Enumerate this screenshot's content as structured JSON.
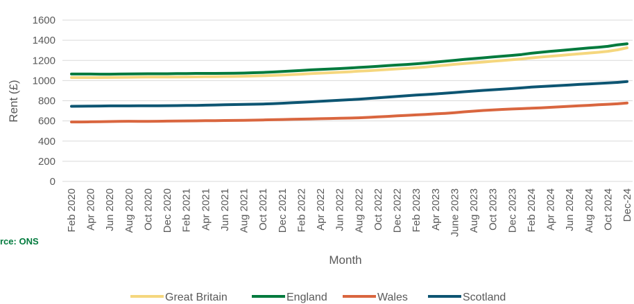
{
  "chart_data": {
    "type": "line",
    "title": "",
    "xlabel": "Month",
    "ylabel": "Rent (£)",
    "ylim": [
      0,
      1600
    ],
    "yticks": [
      0,
      200,
      400,
      600,
      800,
      1000,
      1200,
      1400,
      1600
    ],
    "grid": true,
    "legend_position": "bottom",
    "source": "rce: ONS",
    "x": [
      "Feb 2020",
      "Mar 2020",
      "Apr 2020",
      "May 2020",
      "Jun 2020",
      "Jul 2020",
      "Aug 2020",
      "Sep 2020",
      "Oct 2020",
      "Nov 2020",
      "Dec 2020",
      "Jan 2021",
      "Feb 2021",
      "Mar 2021",
      "Apr 2021",
      "May 2021",
      "Jun 2021",
      "Jul 2021",
      "Aug 2021",
      "Sep 2021",
      "Oct 2021",
      "Nov 2021",
      "Dec 2021",
      "Jan 2022",
      "Feb 2022",
      "Mar 2022",
      "Apr 2022",
      "May 2022",
      "Jun 2022",
      "Jul 2022",
      "Aug 2022",
      "Sep 2022",
      "Oct 2022",
      "Nov 2022",
      "Dec 2022",
      "Jan 2023",
      "Feb 2023",
      "Mar 2023",
      "Apr 2023",
      "May 2023",
      "June 2023",
      "Jul 2023",
      "Aug 2023",
      "Sep 2023",
      "Oct 2023",
      "Nov 2023",
      "Dec 2023",
      "Jan 2024",
      "Feb 2024",
      "Mar 2024",
      "Apr 2024",
      "May 2024",
      "Jun 2024",
      "Jul 2024",
      "Aug 2024",
      "Sep 2024",
      "Oct 2024",
      "Nov 2024",
      "Dec-24"
    ],
    "tick_labels": [
      "Feb 2020",
      "Apr 2020",
      "Jun 2020",
      "Aug 2020",
      "Oct 2020",
      "Dec 2020",
      "Feb 2021",
      "Apr 2021",
      "Jun 2021",
      "Aug 2021",
      "Oct 2021",
      "Dec 2021",
      "Feb 2022",
      "Apr 2022",
      "Jun 2022",
      "Aug 2022",
      "Oct 2022",
      "Dec 2022",
      "Feb 2023",
      "Apr 2023",
      "June 2023",
      "Aug 2023",
      "Oct 2023",
      "Dec 2023",
      "Feb 2024",
      "Apr 2024",
      "Jun 2024",
      "Aug 2024",
      "Oct 2024",
      "Dec-24"
    ],
    "series": [
      {
        "name": "Great Britain",
        "color": "#f5d77e",
        "values": [
          1030,
          1030,
          1030,
          1030,
          1031,
          1032,
          1033,
          1034,
          1035,
          1035,
          1035,
          1035,
          1036,
          1037,
          1038,
          1039,
          1040,
          1041,
          1043,
          1045,
          1048,
          1051,
          1055,
          1059,
          1064,
          1069,
          1074,
          1078,
          1082,
          1087,
          1093,
          1098,
          1104,
          1110,
          1116,
          1122,
          1128,
          1135,
          1144,
          1152,
          1161,
          1169,
          1177,
          1184,
          1192,
          1199,
          1207,
          1215,
          1225,
          1233,
          1241,
          1249,
          1257,
          1265,
          1273,
          1281,
          1290,
          1305,
          1325
        ]
      },
      {
        "name": "England",
        "color": "#007a3d",
        "values": [
          1065,
          1065,
          1065,
          1064,
          1064,
          1065,
          1066,
          1067,
          1068,
          1068,
          1068,
          1069,
          1070,
          1071,
          1071,
          1071,
          1072,
          1073,
          1075,
          1078,
          1081,
          1085,
          1090,
          1095,
          1101,
          1106,
          1111,
          1115,
          1119,
          1124,
          1130,
          1136,
          1142,
          1148,
          1154,
          1160,
          1167,
          1174,
          1183,
          1192,
          1201,
          1210,
          1218,
          1226,
          1234,
          1242,
          1250,
          1259,
          1271,
          1281,
          1290,
          1298,
          1306,
          1315,
          1323,
          1331,
          1340,
          1355,
          1365
        ]
      },
      {
        "name": "Wales",
        "color": "#d9663f",
        "values": [
          590,
          590,
          591,
          592,
          594,
          596,
          597,
          596,
          596,
          597,
          598,
          599,
          600,
          601,
          602,
          603,
          604,
          605,
          606,
          608,
          610,
          612,
          614,
          616,
          618,
          620,
          622,
          624,
          626,
          628,
          631,
          635,
          640,
          645,
          650,
          655,
          660,
          665,
          670,
          675,
          682,
          690,
          697,
          704,
          709,
          714,
          718,
          722,
          726,
          730,
          735,
          740,
          745,
          750,
          755,
          760,
          765,
          770,
          778
        ]
      },
      {
        "name": "Scotland",
        "color": "#0d5572",
        "values": [
          745,
          746,
          747,
          748,
          749,
          749,
          749,
          750,
          750,
          750,
          751,
          752,
          753,
          754,
          756,
          758,
          760,
          762,
          764,
          766,
          768,
          771,
          775,
          780,
          785,
          790,
          795,
          800,
          805,
          810,
          815,
          822,
          829,
          836,
          843,
          850,
          856,
          862,
          868,
          875,
          882,
          889,
          896,
          903,
          909,
          915,
          921,
          928,
          935,
          941,
          946,
          951,
          956,
          962,
          967,
          972,
          977,
          982,
          990
        ]
      }
    ]
  }
}
